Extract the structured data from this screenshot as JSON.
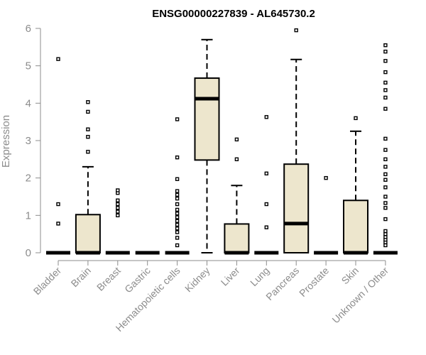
{
  "chart_data": {
    "type": "box",
    "title": "ENSG00000227839 - AL645730.2",
    "xlabel": "",
    "ylabel": "Expression",
    "ylim": [
      0,
      6
    ],
    "yticks": [
      "0",
      "1",
      "2",
      "3",
      "4",
      "5",
      "6"
    ],
    "grid": false,
    "box_fill": "#ede6cd",
    "categories": [
      "Bladder",
      "Brain",
      "Breast",
      "Gastric",
      "Hematopoietic cells",
      "Kidney",
      "Liver",
      "Lung",
      "Pancreas",
      "Prostate",
      "Skin",
      "Unknown / Other"
    ],
    "boxes": [
      {
        "q1": 0,
        "median": 0,
        "q3": 0,
        "whisker_low": 0,
        "whisker_high": 0,
        "outliers": [
          0.78,
          1.3,
          5.18
        ]
      },
      {
        "q1": 0,
        "median": 0,
        "q3": 1.02,
        "whisker_low": 0,
        "whisker_high": 2.3,
        "outliers": [
          2.7,
          3.1,
          3.3,
          3.77,
          4.03
        ]
      },
      {
        "q1": 0,
        "median": 0,
        "q3": 0,
        "whisker_low": 0,
        "whisker_high": 0,
        "outliers": [
          1.0,
          1.1,
          1.2,
          1.3,
          1.4,
          1.6,
          1.67
        ]
      },
      {
        "q1": 0,
        "median": 0,
        "q3": 0,
        "whisker_low": 0,
        "whisker_high": 0,
        "outliers": []
      },
      {
        "q1": 0,
        "median": 0,
        "q3": 0,
        "whisker_low": 0,
        "whisker_high": 0,
        "outliers": [
          0.2,
          0.4,
          0.55,
          0.65,
          0.75,
          0.85,
          0.95,
          1.05,
          1.15,
          1.3,
          1.45,
          1.55,
          1.65,
          1.97,
          2.55,
          3.57
        ]
      },
      {
        "q1": 2.48,
        "median": 4.12,
        "q3": 4.67,
        "whisker_low": 0,
        "whisker_high": 5.7,
        "outliers": []
      },
      {
        "q1": 0,
        "median": 0,
        "q3": 0.77,
        "whisker_low": 0,
        "whisker_high": 1.8,
        "outliers": [
          2.5,
          3.03
        ]
      },
      {
        "q1": 0,
        "median": 0,
        "q3": 0,
        "whisker_low": 0,
        "whisker_high": 0,
        "outliers": [
          0.68,
          1.3,
          2.12,
          3.63
        ]
      },
      {
        "q1": 0,
        "median": 0.78,
        "q3": 2.37,
        "whisker_low": 0,
        "whisker_high": 5.17,
        "outliers": [
          5.95
        ]
      },
      {
        "q1": 0,
        "median": 0,
        "q3": 0,
        "whisker_low": 0,
        "whisker_high": 0,
        "outliers": [
          2.0
        ]
      },
      {
        "q1": 0,
        "median": 0,
        "q3": 1.4,
        "whisker_low": 0,
        "whisker_high": 3.25,
        "outliers": [
          3.6
        ]
      },
      {
        "q1": 0,
        "median": 0,
        "q3": 0,
        "whisker_low": 0,
        "whisker_high": 0,
        "outliers": [
          0.2,
          0.28,
          0.35,
          0.42,
          0.5,
          0.58,
          0.9,
          1.2,
          1.33,
          1.5,
          1.75,
          1.95,
          2.1,
          2.3,
          2.5,
          2.75,
          3.05,
          3.85,
          4.15,
          4.35,
          4.55,
          4.83,
          5.13,
          5.38,
          5.55
        ]
      }
    ]
  }
}
